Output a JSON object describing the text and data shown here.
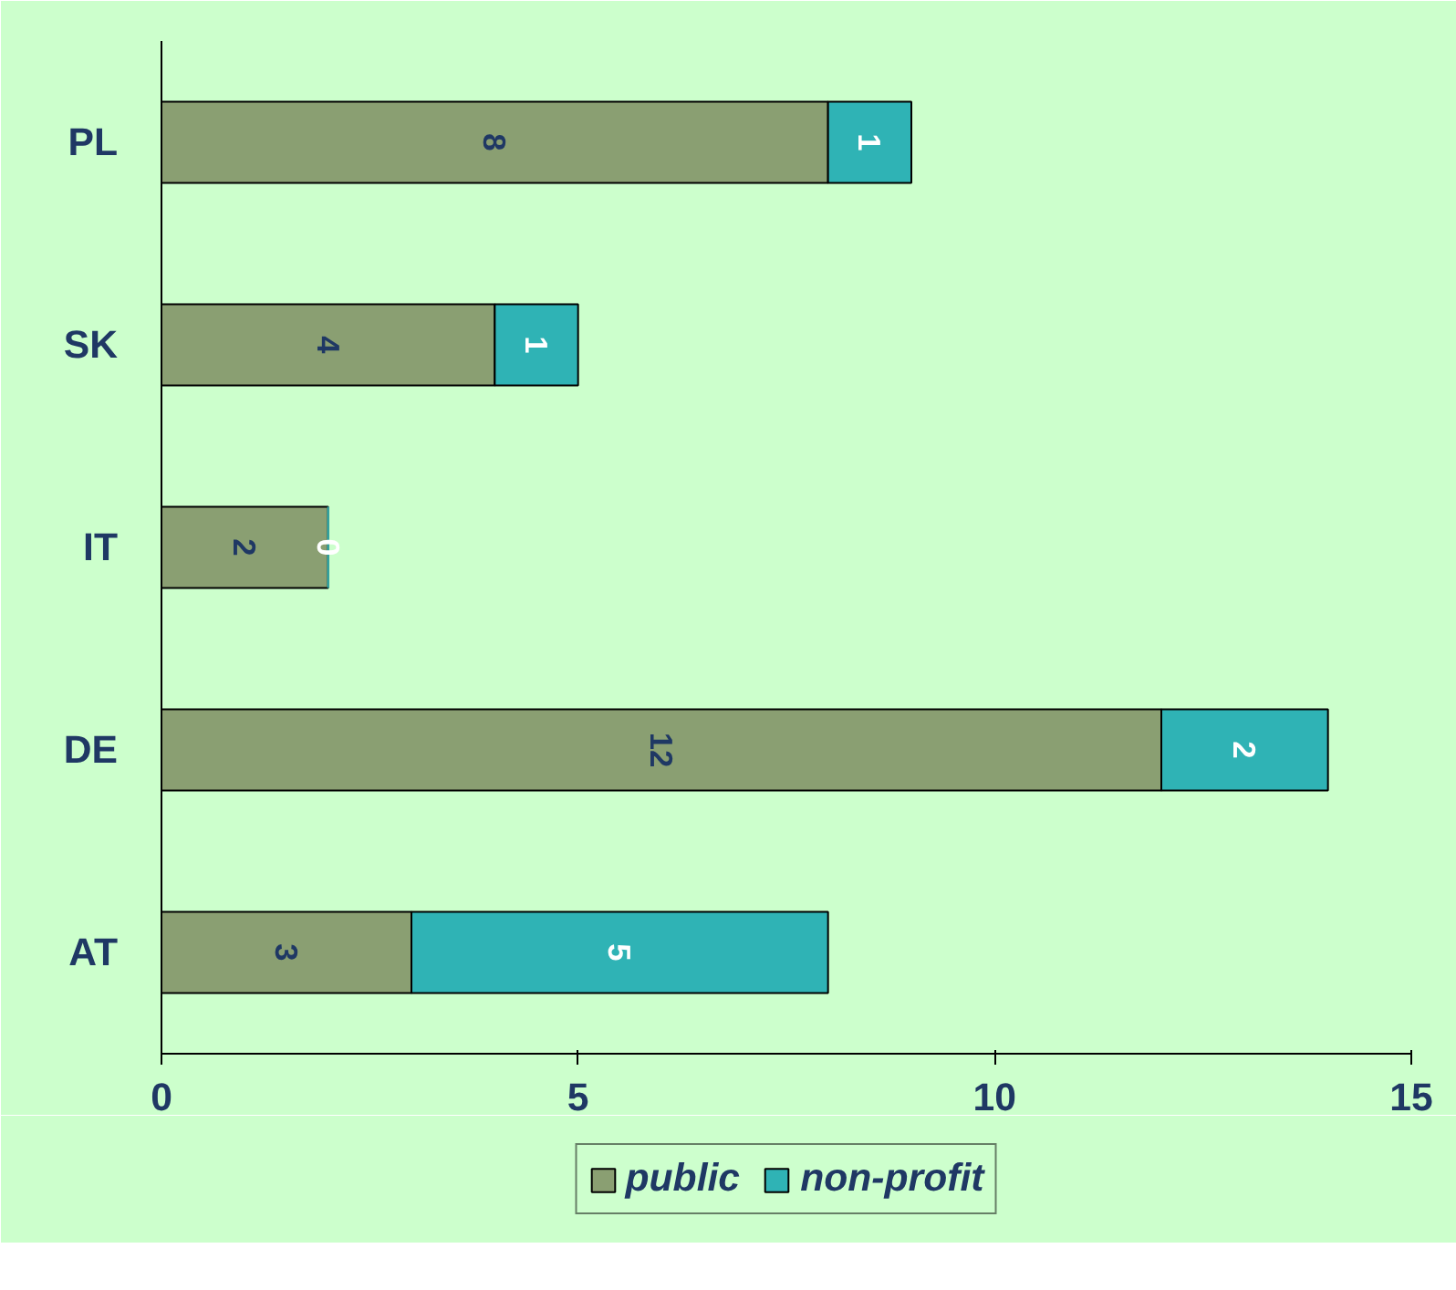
{
  "chart_data": {
    "type": "bar",
    "orientation": "horizontal",
    "stacked": true,
    "categories": [
      "PL",
      "SK",
      "IT",
      "DE",
      "AT"
    ],
    "series": [
      {
        "name": "public",
        "color": "#8a9f72",
        "values": [
          8,
          4,
          2,
          12,
          3
        ]
      },
      {
        "name": "non-profit",
        "color": "#2fb3b5",
        "values": [
          1,
          1,
          0,
          2,
          5
        ]
      }
    ],
    "xlim": [
      0,
      15
    ],
    "xticks": [
      0,
      5,
      10,
      15
    ],
    "grid": false,
    "legend": "bottom",
    "data_labels": true
  }
}
